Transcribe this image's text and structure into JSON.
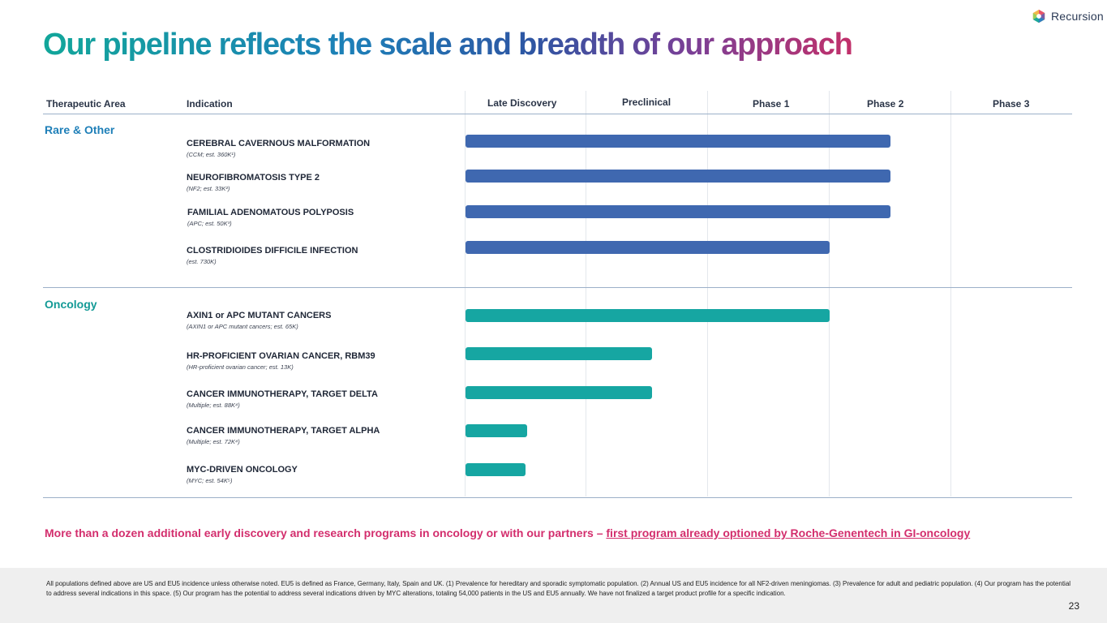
{
  "brand": {
    "name": "Recursion"
  },
  "title": "Our pipeline reflects the scale and breadth of our approach",
  "columns": {
    "therapeutic_area": "Therapeutic Area",
    "indication": "Indication",
    "late_discovery": "Late Discovery",
    "preclinical": "Preclinical",
    "phase1": "Phase 1",
    "phase2": "Phase 2",
    "phase3": "Phase 3"
  },
  "stages": [
    "Late Discovery",
    "Preclinical",
    "Phase 1",
    "Phase 2",
    "Phase 3"
  ],
  "sections": [
    {
      "name": "Rare & Other",
      "color": "#1e7fb8"
    },
    {
      "name": "Oncology",
      "color": "#139a96"
    }
  ],
  "programs": [
    {
      "name": "CEREBRAL CAVERNOUS MALFORMATION",
      "detail": "(CCM; est. 360K¹)",
      "section": "Rare & Other",
      "progress_stages": 3.5
    },
    {
      "name": "NEUROFIBROMATOSIS TYPE 2",
      "detail": "(NF2; est. 33K²)",
      "section": "Rare & Other",
      "progress_stages": 3.5
    },
    {
      "name": "FAMILIAL ADENOMATOUS POLYPOSIS",
      "detail": "(APC; est. 50K³)",
      "section": "Rare & Other",
      "progress_stages": 3.5
    },
    {
      "name": "CLOSTRIDIOIDES DIFFICILE INFECTION",
      "detail": "(est. 730K)",
      "section": "Rare & Other",
      "progress_stages": 3.0
    },
    {
      "name": "AXIN1 or APC MUTANT CANCERS",
      "detail": "(AXIN1 or APC mutant cancers; est. 65K)",
      "section": "Oncology",
      "progress_stages": 3.0
    },
    {
      "name": "HR-PROFICIENT OVARIAN CANCER, RBM39",
      "detail": "(HR-proficient ovarian cancer; est. 13K)",
      "section": "Oncology",
      "progress_stages": 1.54
    },
    {
      "name": "CANCER IMMUNOTHERAPY, TARGET DELTA",
      "detail": "(Multiple; est. 88K⁴)",
      "section": "Oncology",
      "progress_stages": 1.54
    },
    {
      "name": "CANCER IMMUNOTHERAPY, TARGET ALPHA",
      "detail": "(Multiple; est. 72K⁴)",
      "section": "Oncology",
      "progress_stages": 0.51
    },
    {
      "name": "MYC-DRIVEN ONCOLOGY",
      "detail": "(MYC; est. 54K⁵)",
      "section": "Oncology",
      "progress_stages": 0.5
    }
  ],
  "note": {
    "text": "More than a dozen additional early discovery and research programs in oncology or with our partners – ",
    "link": "first program already optioned by Roche-Genentech in GI-oncology"
  },
  "footnote": "All populations defined above are US and EU5 incidence unless otherwise noted. EU5 is defined as France, Germany, Italy, Spain and UK. (1) Prevalence for hereditary and sporadic symptomatic population. (2) Annual US and EU5 incidence for all NF2-driven meningiomas. (3) Prevalence for adult and pediatric population. (4) Our program has the potential to address several indications in this space. (5) Our program has the potential to address several indications driven by MYC alterations, totaling 54,000 patients in the US and EU5 annually. We have not finalized a target product profile for a specific indication.",
  "page_number": "23"
}
